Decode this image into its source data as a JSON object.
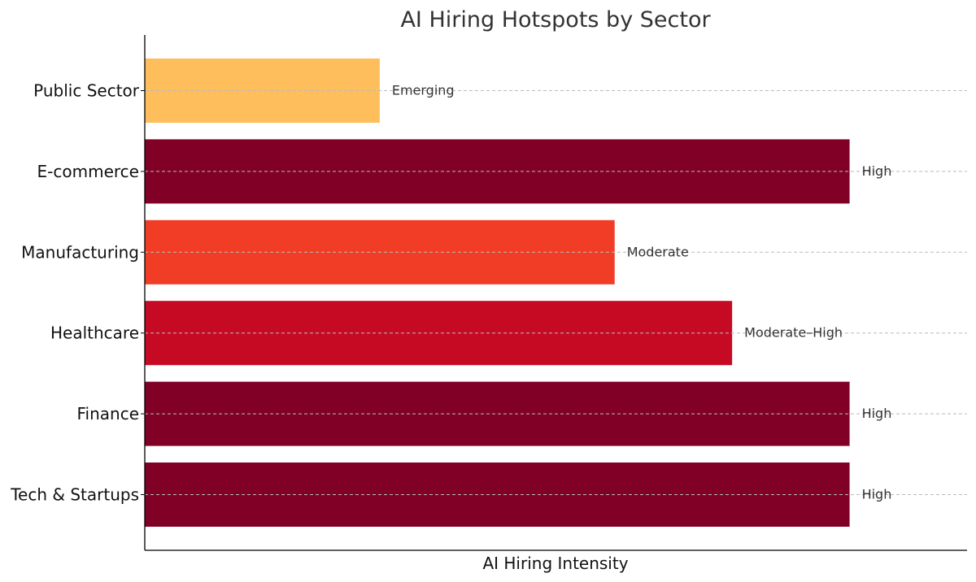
{
  "chart_data": {
    "type": "bar",
    "orientation": "horizontal",
    "title": "AI Hiring Hotspots by Sector",
    "xlabel": "AI Hiring Intensity",
    "ylabel": "",
    "xlim": [
      0,
      3.5
    ],
    "grid": "y-dashed",
    "legend": "none",
    "categories": [
      "Tech & Startups",
      "Finance",
      "Healthcare",
      "Manufacturing",
      "E-commerce",
      "Public Sector"
    ],
    "values": [
      3,
      3,
      2.5,
      2,
      3,
      1
    ],
    "value_labels": [
      "High",
      "High",
      "Moderate–High",
      "Moderate",
      "High",
      "Emerging"
    ],
    "colors": [
      "#800026",
      "#800026",
      "#c70a24",
      "#f23d26",
      "#800026",
      "#fdbe5b"
    ]
  }
}
